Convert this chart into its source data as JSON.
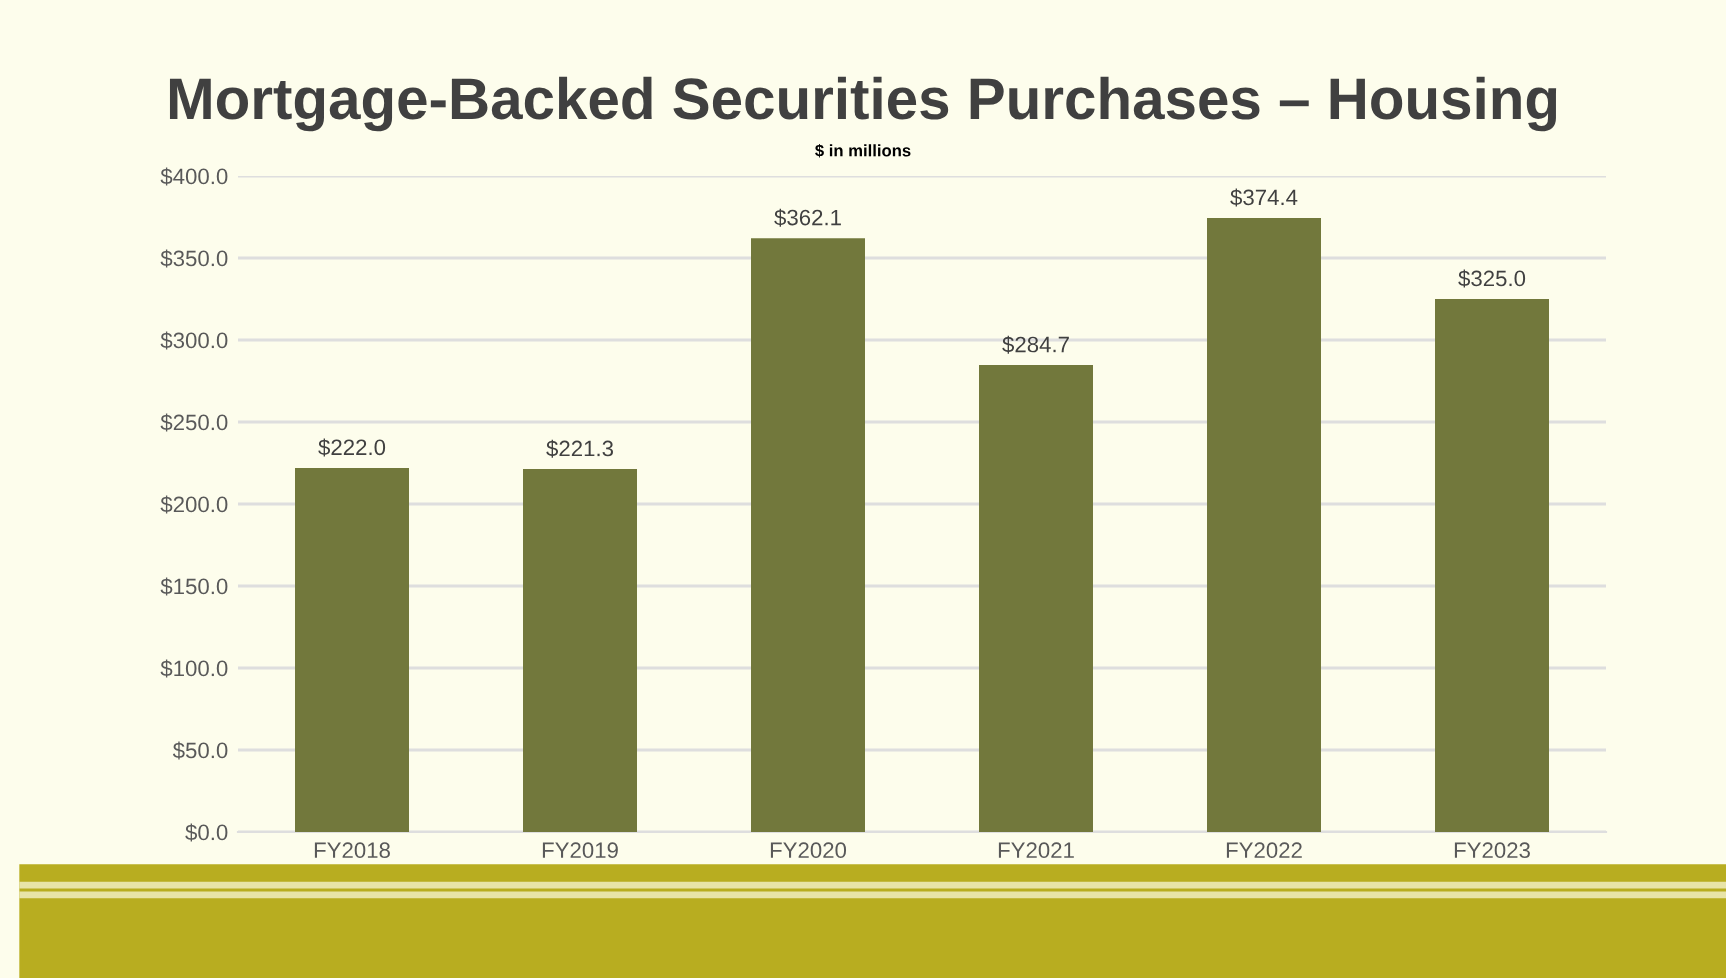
{
  "chart_data": {
    "type": "bar",
    "title": "Mortgage-Backed Securities Purchases – Housing",
    "subtitle": "$ in millions",
    "categories": [
      "FY2018",
      "FY2019",
      "FY2020",
      "FY2021",
      "FY2022",
      "FY2023"
    ],
    "values": [
      222.0,
      221.3,
      362.1,
      284.7,
      374.4,
      325.0
    ],
    "value_labels": [
      "$222.0",
      "$221.3",
      "$362.1",
      "$284.7",
      "$374.4",
      "$325.0"
    ],
    "color": "#72783c",
    "ylim": [
      0,
      400
    ],
    "yticks": [
      {
        "value": 0,
        "label": "$0.0"
      },
      {
        "value": 50,
        "label": "$50.0"
      },
      {
        "value": 100,
        "label": "$100.0"
      },
      {
        "value": 150,
        "label": "$150.0"
      },
      {
        "value": 200,
        "label": "$200.0"
      },
      {
        "value": 250,
        "label": "$250.0"
      },
      {
        "value": 300,
        "label": "$300.0"
      },
      {
        "value": 350,
        "label": "$350.0"
      },
      {
        "value": 400,
        "label": "$400.0"
      }
    ],
    "grid": "y"
  }
}
